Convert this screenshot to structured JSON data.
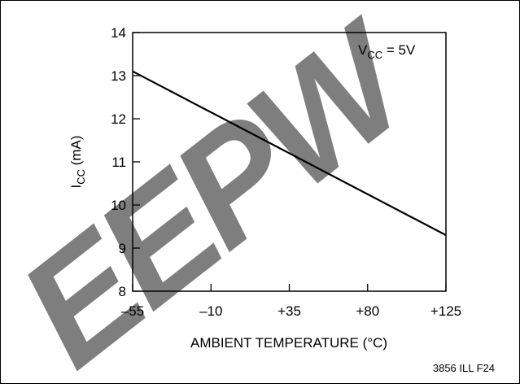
{
  "chart_data": {
    "type": "line",
    "xlabel": "AMBIENT TEMPERATURE (°C)",
    "ylabel": {
      "main": "I",
      "sub": "CC",
      "rest": " (mA)"
    },
    "xlim": [
      -55,
      125
    ],
    "ylim": [
      8,
      14
    ],
    "x_ticks": [
      -55,
      -10,
      35,
      80,
      125
    ],
    "x_tick_labels": [
      "–55",
      "–10",
      "+35",
      "+80",
      "+125"
    ],
    "y_ticks": [
      8,
      9,
      10,
      11,
      12,
      13,
      14
    ],
    "y_tick_labels": [
      "8",
      "9",
      "10",
      "11",
      "12",
      "13",
      "14"
    ],
    "series": [
      {
        "x": [
          -55,
          125
        ],
        "y": [
          13.1,
          9.3
        ],
        "color": "#000000"
      }
    ],
    "annotation": {
      "main": "V",
      "sub": "CC",
      "rest": " = 5V"
    },
    "footnote": "3856 ILL F24",
    "watermark": {
      "text": "EEPW",
      "color": "#e8202a"
    },
    "grid": false,
    "frame": true
  }
}
